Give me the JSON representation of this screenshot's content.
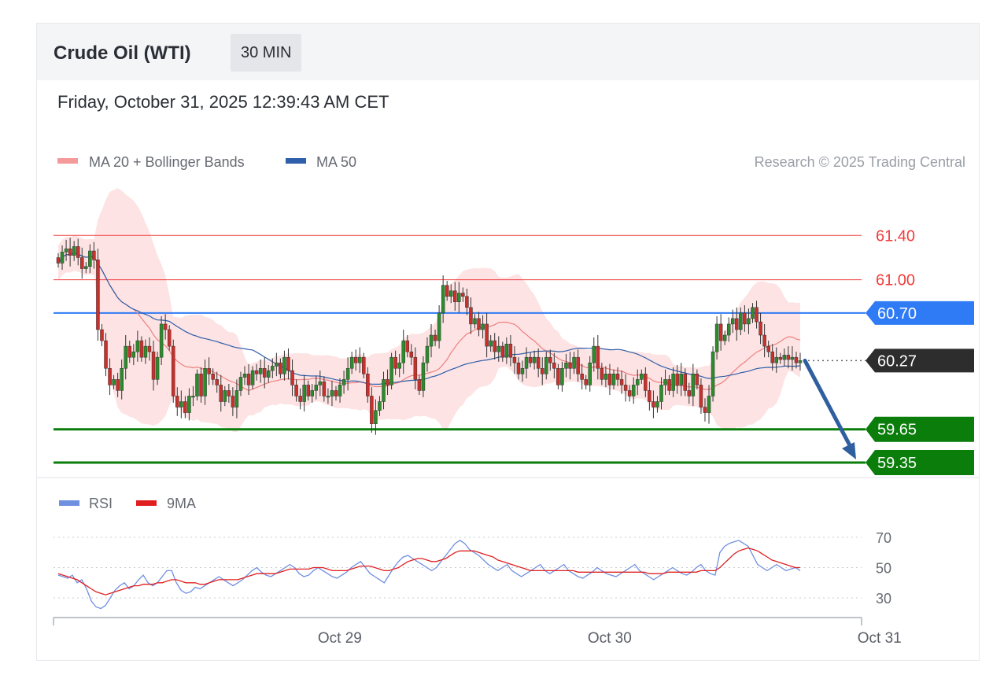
{
  "header": {
    "instrument": "Crude Oil (WTI)",
    "timeframe": "30 MIN",
    "timestamp": "Friday, October 31, 2025 12:39:43 AM CET"
  },
  "legend": {
    "ma20_bb": "MA 20 + Bollinger Bands",
    "ma50": "MA 50",
    "credit": "Research © 2025 Trading Central"
  },
  "rsi_legend": {
    "rsi": "RSI",
    "ma9": "9MA"
  },
  "colors": {
    "resistance": "#f03c3c",
    "pivot": "#2f7bf5",
    "support": "#0a7d0a",
    "last_price": "#2d2d2d",
    "ma50": "#2f5faa",
    "bollinger_fill": "#fde3e3",
    "candle_up": "#2c8c2c",
    "candle_down": "#c9302c",
    "rsi_line": "#6f8fe0",
    "rsi_ma": "#e02020"
  },
  "chart_data": {
    "type": "candlestick",
    "y_range": [
      59.3,
      61.75
    ],
    "levels": [
      {
        "label": "61.40",
        "value": 61.4,
        "role": "resistance"
      },
      {
        "label": "61.00",
        "value": 61.0,
        "role": "resistance"
      },
      {
        "label": "60.70",
        "value": 60.7,
        "role": "pivot"
      },
      {
        "label": "60.27",
        "value": 60.27,
        "role": "last"
      },
      {
        "label": "59.65",
        "value": 59.65,
        "role": "support"
      },
      {
        "label": "59.35",
        "value": 59.35,
        "role": "support"
      }
    ],
    "x_tick_labels": [
      "Oct 29",
      "Oct 30",
      "Oct 31"
    ],
    "x_tick_index": [
      68,
      136,
      204
    ],
    "close": [
      61.15,
      61.25,
      61.28,
      61.22,
      61.3,
      61.2,
      61.1,
      61.12,
      61.26,
      61.18,
      60.55,
      60.45,
      60.2,
      60.05,
      60.1,
      60.0,
      60.2,
      60.4,
      60.3,
      60.35,
      60.45,
      60.3,
      60.4,
      60.35,
      60.1,
      60.3,
      60.6,
      60.55,
      60.4,
      59.95,
      59.85,
      59.9,
      59.8,
      59.95,
      59.95,
      60.15,
      59.95,
      60.2,
      60.15,
      60.1,
      60.05,
      59.9,
      60.0,
      59.95,
      59.85,
      60.0,
      60.12,
      60.15,
      60.05,
      60.18,
      60.15,
      60.2,
      60.12,
      60.18,
      60.22,
      60.25,
      60.15,
      60.3,
      60.18,
      60.05,
      59.95,
      59.9,
      60.05,
      59.95,
      60.0,
      60.05,
      60.08,
      59.95,
      59.95,
      60.0,
      59.95,
      60.05,
      60.1,
      60.2,
      60.3,
      60.25,
      60.3,
      60.15,
      59.95,
      59.7,
      59.82,
      59.9,
      60.1,
      60.05,
      60.3,
      60.2,
      60.25,
      60.45,
      60.35,
      60.3,
      60.1,
      60.0,
      60.25,
      60.4,
      60.5,
      60.45,
      60.7,
      60.95,
      60.85,
      60.9,
      60.8,
      60.88,
      60.85,
      60.75,
      60.6,
      60.65,
      60.55,
      60.6,
      60.4,
      60.45,
      60.35,
      60.4,
      60.3,
      60.42,
      60.3,
      60.25,
      60.15,
      60.2,
      60.3,
      60.25,
      60.3,
      60.2,
      60.15,
      60.3,
      60.25,
      60.2,
      60.05,
      60.2,
      60.25,
      60.2,
      60.3,
      60.15,
      60.1,
      60.05,
      60.25,
      60.4,
      60.2,
      60.1,
      60.15,
      60.05,
      60.15,
      60.1,
      60.05,
      60.0,
      59.95,
      60.05,
      60.1,
      60.15,
      60.0,
      59.9,
      59.85,
      59.9,
      60.05,
      60.1,
      60.0,
      60.15,
      60.05,
      60.15,
      60.0,
      59.95,
      60.15,
      60.05,
      59.85,
      59.8,
      59.95,
      60.35,
      60.6,
      60.45,
      60.5,
      60.6,
      60.65,
      60.55,
      60.7,
      60.6,
      60.65,
      60.75,
      60.62,
      60.5,
      60.4,
      60.35,
      60.25,
      60.3,
      60.28,
      60.32,
      60.28,
      60.3,
      60.25,
      60.27
    ],
    "rsi": {
      "levels": [
        70,
        50,
        30
      ],
      "rsi": [
        45,
        44,
        43,
        45,
        40,
        42,
        36,
        28,
        24,
        23,
        25,
        30,
        35,
        38,
        40,
        36,
        38,
        42,
        45,
        40,
        38,
        40,
        44,
        48,
        48,
        40,
        35,
        33,
        34,
        37,
        36,
        38,
        40,
        42,
        44,
        42,
        40,
        38,
        40,
        42,
        45,
        48,
        50,
        47,
        45,
        44,
        46,
        48,
        50,
        52,
        50,
        46,
        44,
        45,
        48,
        50,
        48,
        46,
        44,
        43,
        45,
        47,
        50,
        52,
        54,
        50,
        46,
        44,
        42,
        40,
        45,
        50,
        54,
        57,
        58,
        56,
        54,
        52,
        50,
        48,
        50,
        54,
        58,
        62,
        66,
        68,
        66,
        62,
        60,
        58,
        55,
        52,
        50,
        48,
        50,
        52,
        48,
        46,
        44,
        46,
        48,
        50,
        52,
        48,
        46,
        48,
        50,
        52,
        48,
        46,
        44,
        43,
        45,
        47,
        50,
        48,
        46,
        45,
        44,
        46,
        48,
        50,
        52,
        48,
        46,
        44,
        42,
        44,
        46,
        48,
        50,
        48,
        46,
        45,
        47,
        50,
        52,
        48,
        46,
        45,
        60,
        64,
        66,
        67,
        68,
        66,
        64,
        58,
        52,
        50,
        48,
        50,
        52,
        50,
        48,
        49,
        50,
        48
      ],
      "ma9": [
        46,
        45,
        44,
        43,
        42,
        40,
        38,
        36,
        34,
        33,
        32,
        33,
        34,
        35,
        36,
        37,
        38,
        38,
        39,
        39,
        39,
        40,
        40,
        41,
        42,
        42,
        41,
        40,
        40,
        40,
        39,
        39,
        40,
        41,
        42,
        42,
        42,
        42,
        42,
        43,
        44,
        45,
        46,
        46,
        46,
        46,
        46,
        47,
        48,
        49,
        49,
        49,
        49,
        49,
        50,
        50,
        50,
        49,
        48,
        48,
        48,
        48,
        49,
        50,
        51,
        51,
        51,
        50,
        49,
        48,
        48,
        49,
        50,
        52,
        54,
        55,
        56,
        56,
        55,
        54,
        54,
        55,
        56,
        58,
        60,
        61,
        61,
        61,
        61,
        60,
        59,
        58,
        57,
        55,
        54,
        53,
        52,
        51,
        50,
        49,
        48,
        48,
        48,
        48,
        48,
        48,
        48,
        48,
        48,
        48,
        47,
        47,
        47,
        47,
        47,
        47,
        47,
        47,
        47,
        47,
        47,
        47,
        47,
        47,
        47,
        46,
        46,
        46,
        46,
        47,
        47,
        47,
        47,
        47,
        47,
        47,
        48,
        48,
        48,
        48,
        50,
        53,
        56,
        59,
        61,
        62,
        63,
        62,
        61,
        59,
        57,
        55,
        54,
        53,
        52,
        51,
        50,
        50
      ]
    }
  }
}
